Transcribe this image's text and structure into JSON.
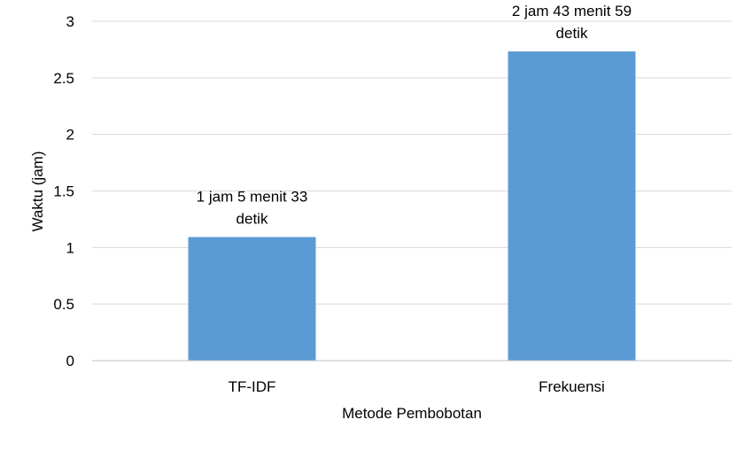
{
  "chart_data": {
    "type": "bar",
    "title": "",
    "xlabel": "Metode Pembobotan",
    "ylabel": "Waktu (jam)",
    "categories": [
      "TF-IDF",
      "Frekuensi"
    ],
    "values": [
      1.0925,
      2.7331
    ],
    "data_labels": [
      [
        "1 jam 5 menit 33",
        "detik"
      ],
      [
        "2 jam 43 menit 59",
        "detik"
      ]
    ],
    "yticks": [
      0,
      0.5,
      1,
      1.5,
      2,
      2.5,
      3
    ],
    "ytick_labels": [
      "0",
      "0.5",
      "1",
      "1.5",
      "2",
      "2.5",
      "3"
    ],
    "ylim": [
      0,
      3
    ],
    "grid": true,
    "legend": "none",
    "colors": {
      "bar": "#5b9bd5",
      "grid": "#d9d9d9",
      "axis": "#bfbfbf"
    }
  }
}
